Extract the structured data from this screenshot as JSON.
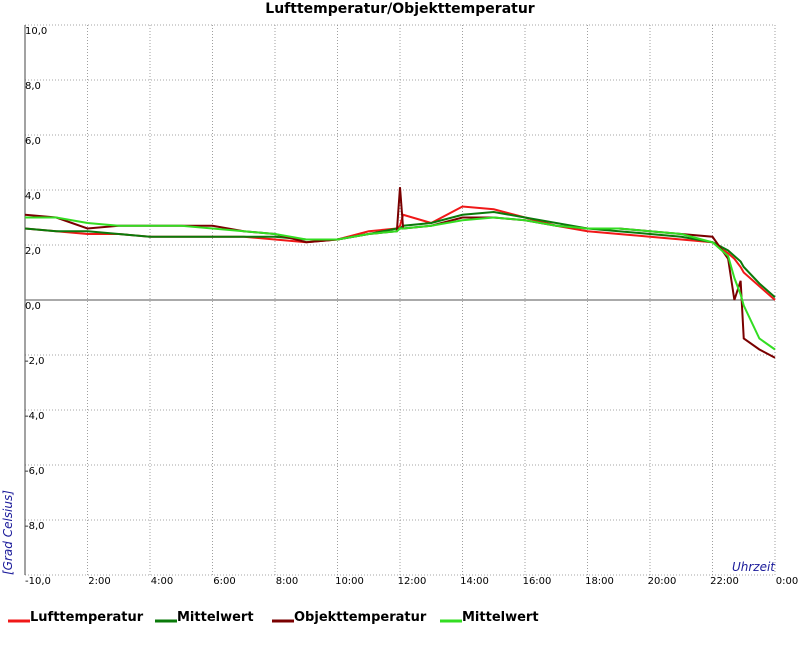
{
  "chart_data": {
    "type": "line",
    "title": "Lufttemperatur/Objekttemperatur",
    "y_label": "[Grad Celsius]",
    "x_label": "Uhrzeit",
    "x": [
      0,
      1,
      2,
      3,
      4,
      5,
      6,
      7,
      8,
      9,
      10,
      11,
      11.9,
      12,
      12.1,
      13,
      14,
      15,
      16,
      17,
      18,
      19,
      20,
      21,
      22,
      22.5,
      22.7,
      22.9,
      23,
      23.5,
      24
    ],
    "series": [
      {
        "name": "Lufttemperatur",
        "color": "#f01818",
        "values": [
          2.6,
          2.5,
          2.4,
          2.4,
          2.3,
          2.3,
          2.3,
          2.3,
          2.2,
          2.1,
          2.2,
          2.5,
          2.6,
          2.7,
          3.1,
          2.8,
          3.4,
          3.3,
          3.0,
          2.7,
          2.5,
          2.4,
          2.3,
          2.2,
          2.1,
          1.7,
          1.5,
          1.2,
          1.0,
          0.5,
          0.0
        ]
      },
      {
        "name": "Mittelwert",
        "color": "#0a7a0a",
        "values": [
          2.6,
          2.5,
          2.5,
          2.4,
          2.3,
          2.3,
          2.3,
          2.3,
          2.3,
          2.2,
          2.2,
          2.4,
          2.6,
          2.6,
          2.7,
          2.8,
          3.1,
          3.2,
          3.0,
          2.8,
          2.6,
          2.5,
          2.4,
          2.3,
          2.1,
          1.8,
          1.6,
          1.4,
          1.2,
          0.6,
          0.1
        ]
      },
      {
        "name": "Objekttemperatur",
        "color": "#7a0000",
        "values": [
          3.1,
          3.0,
          2.6,
          2.7,
          2.7,
          2.7,
          2.7,
          2.5,
          2.4,
          2.1,
          2.2,
          2.4,
          2.5,
          4.1,
          2.6,
          2.7,
          3.0,
          3.0,
          2.9,
          2.7,
          2.6,
          2.6,
          2.5,
          2.4,
          2.3,
          1.5,
          0.0,
          0.7,
          -1.4,
          -1.8,
          -2.1
        ]
      },
      {
        "name": "Mittelwert",
        "color": "#33dd22",
        "values": [
          3.0,
          3.0,
          2.8,
          2.7,
          2.7,
          2.7,
          2.6,
          2.5,
          2.4,
          2.2,
          2.2,
          2.4,
          2.5,
          2.6,
          2.6,
          2.7,
          2.9,
          3.0,
          2.9,
          2.7,
          2.6,
          2.6,
          2.5,
          2.4,
          2.1,
          1.6,
          0.8,
          0.2,
          -0.2,
          -1.4,
          -1.8
        ]
      }
    ],
    "xlim": [
      0,
      24
    ],
    "xticks": [
      {
        "value": 2,
        "label": "2:00"
      },
      {
        "value": 4,
        "label": "4:00"
      },
      {
        "value": 6,
        "label": "6:00"
      },
      {
        "value": 8,
        "label": "8:00"
      },
      {
        "value": 10,
        "label": "10:00"
      },
      {
        "value": 12,
        "label": "12:00"
      },
      {
        "value": 14,
        "label": "14:00"
      },
      {
        "value": 16,
        "label": "16:00"
      },
      {
        "value": 18,
        "label": "18:00"
      },
      {
        "value": 20,
        "label": "20:00"
      },
      {
        "value": 22,
        "label": "22:00"
      },
      {
        "value": 24,
        "label": "0:00"
      }
    ],
    "ylim": [
      -10,
      10
    ],
    "yticks": [
      {
        "value": -10,
        "label": "-10,0"
      },
      {
        "value": -8,
        "label": "-8,0"
      },
      {
        "value": -6,
        "label": "-6,0"
      },
      {
        "value": -4,
        "label": "-4,0"
      },
      {
        "value": -2,
        "label": "-2,0"
      },
      {
        "value": 0,
        "label": "0,0"
      },
      {
        "value": 2,
        "label": "2,0"
      },
      {
        "value": 4,
        "label": "4,0"
      },
      {
        "value": 6,
        "label": "6,0"
      },
      {
        "value": 8,
        "label": "8,0"
      },
      {
        "value": 10,
        "label": "10,0"
      }
    ],
    "grid": true
  }
}
